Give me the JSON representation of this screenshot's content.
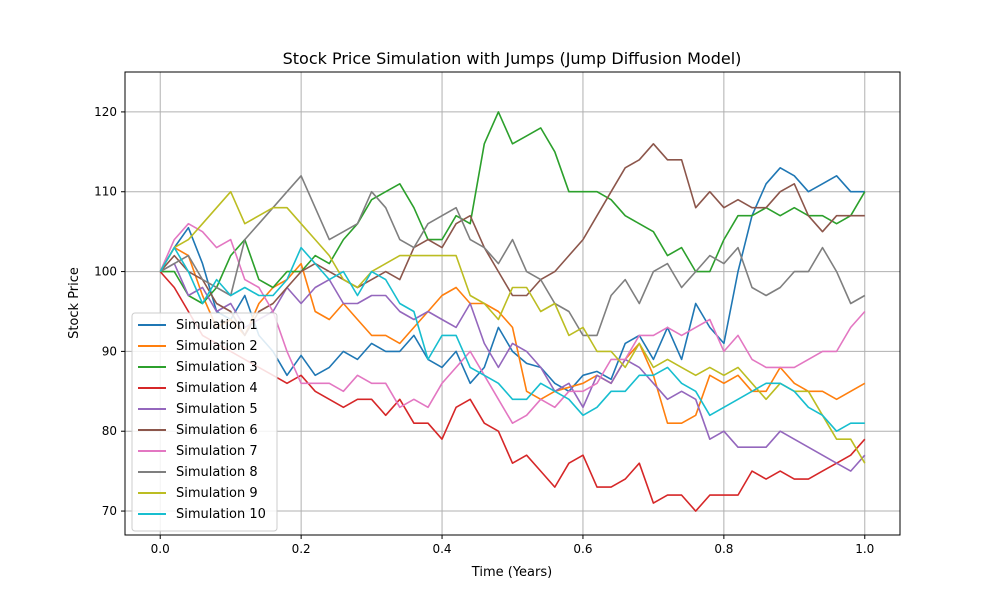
{
  "chart_data": {
    "type": "line",
    "title": "Stock Price Simulation with Jumps (Jump Diffusion Model)",
    "xlabel": "Time (Years)",
    "ylabel": "Stock Price",
    "xlim": [
      -0.05,
      1.05
    ],
    "ylim": [
      67,
      125
    ],
    "xticks": [
      0.0,
      0.2,
      0.4,
      0.6,
      0.8,
      1.0
    ],
    "xtick_labels": [
      "0.0",
      "0.2",
      "0.4",
      "0.6",
      "0.8",
      "1.0"
    ],
    "yticks": [
      70,
      80,
      90,
      100,
      110,
      120
    ],
    "ytick_labels": [
      "70",
      "80",
      "90",
      "100",
      "110",
      "120"
    ],
    "grid": true,
    "legend_position": "lower-left",
    "series": [
      {
        "name": "Simulation 1",
        "color": "#1f77b4",
        "x": [
          0.0,
          0.02,
          0.04,
          0.06,
          0.08,
          0.1,
          0.12,
          0.14,
          0.16,
          0.18,
          0.2,
          0.22,
          0.24,
          0.26,
          0.28,
          0.3,
          0.32,
          0.34,
          0.36,
          0.38,
          0.4,
          0.42,
          0.44,
          0.46,
          0.48,
          0.5,
          0.52,
          0.54,
          0.56,
          0.58,
          0.6,
          0.62,
          0.64,
          0.66,
          0.68,
          0.7,
          0.72,
          0.74,
          0.76,
          0.78,
          0.8,
          0.82,
          0.84,
          0.86,
          0.88,
          0.9,
          0.92,
          0.94,
          0.96,
          0.98,
          1.0
        ],
        "y": [
          100,
          103,
          105.5,
          101,
          95,
          94,
          97,
          92,
          90,
          87,
          89.5,
          87,
          88,
          90,
          89,
          91,
          90,
          90,
          92,
          89,
          88,
          90,
          86,
          88,
          93,
          90,
          88.5,
          88,
          86,
          85,
          87,
          87.5,
          86.5,
          91,
          92,
          89,
          93,
          89,
          96,
          93,
          91,
          100,
          107,
          111,
          113,
          112,
          110,
          111,
          112,
          110,
          110
        ]
      },
      {
        "name": "Simulation 2",
        "color": "#ff7f0e",
        "x": [
          0.0,
          0.02,
          0.04,
          0.06,
          0.08,
          0.1,
          0.12,
          0.14,
          0.16,
          0.18,
          0.2,
          0.22,
          0.24,
          0.26,
          0.28,
          0.3,
          0.32,
          0.34,
          0.36,
          0.38,
          0.4,
          0.42,
          0.44,
          0.46,
          0.48,
          0.5,
          0.52,
          0.54,
          0.56,
          0.58,
          0.6,
          0.62,
          0.64,
          0.66,
          0.68,
          0.7,
          0.72,
          0.74,
          0.76,
          0.78,
          0.8,
          0.82,
          0.84,
          0.86,
          0.88,
          0.9,
          0.92,
          0.94,
          0.96,
          0.98,
          1.0
        ],
        "y": [
          100,
          103,
          102,
          97,
          93,
          94,
          92,
          96,
          98,
          99,
          101,
          95,
          94,
          96,
          94,
          92,
          92,
          91,
          93,
          95,
          97,
          98,
          96,
          96,
          95,
          93,
          85,
          84,
          85,
          85.5,
          86,
          87,
          86,
          89,
          91,
          87,
          81,
          81,
          82,
          87,
          86,
          87,
          85,
          85,
          88,
          86,
          85,
          85,
          84,
          85,
          86
        ]
      },
      {
        "name": "Simulation 3",
        "color": "#2ca02c",
        "x": [
          0.0,
          0.02,
          0.04,
          0.06,
          0.08,
          0.1,
          0.12,
          0.14,
          0.16,
          0.18,
          0.2,
          0.22,
          0.24,
          0.26,
          0.28,
          0.3,
          0.32,
          0.34,
          0.36,
          0.38,
          0.4,
          0.42,
          0.44,
          0.46,
          0.48,
          0.5,
          0.52,
          0.54,
          0.56,
          0.58,
          0.6,
          0.62,
          0.64,
          0.66,
          0.68,
          0.7,
          0.72,
          0.74,
          0.76,
          0.78,
          0.8,
          0.82,
          0.84,
          0.86,
          0.88,
          0.9,
          0.92,
          0.94,
          0.96,
          0.98,
          1.0
        ],
        "y": [
          100,
          100,
          97,
          96,
          98,
          102,
          104,
          99,
          98,
          100,
          100,
          102,
          101,
          104,
          106,
          109,
          110,
          111,
          108,
          104,
          104,
          107,
          106,
          116,
          120,
          116,
          117,
          118,
          115,
          110,
          110,
          110,
          109,
          107,
          106,
          105,
          102,
          103,
          100,
          100,
          104,
          107,
          107,
          108,
          107,
          108,
          107,
          107,
          106,
          107,
          110
        ]
      },
      {
        "name": "Simulation 4",
        "color": "#d62728",
        "x": [
          0.0,
          0.02,
          0.04,
          0.06,
          0.08,
          0.1,
          0.12,
          0.14,
          0.16,
          0.18,
          0.2,
          0.22,
          0.24,
          0.26,
          0.28,
          0.3,
          0.32,
          0.34,
          0.36,
          0.38,
          0.4,
          0.42,
          0.44,
          0.46,
          0.48,
          0.5,
          0.52,
          0.54,
          0.56,
          0.58,
          0.6,
          0.62,
          0.64,
          0.66,
          0.68,
          0.7,
          0.72,
          0.74,
          0.76,
          0.78,
          0.8,
          0.82,
          0.84,
          0.86,
          0.88,
          0.9,
          0.92,
          0.94,
          0.96,
          0.98,
          1.0
        ],
        "y": [
          100,
          98,
          95,
          92,
          91,
          90,
          89,
          88,
          87,
          86,
          87,
          85,
          84,
          83,
          84,
          84,
          82,
          84,
          81,
          81,
          79,
          83,
          84,
          81,
          80,
          76,
          77,
          75,
          73,
          76,
          77,
          73,
          73,
          74,
          76,
          71,
          72,
          72,
          70,
          72,
          72,
          72,
          75,
          74,
          75,
          74,
          74,
          75,
          76,
          77,
          79
        ]
      },
      {
        "name": "Simulation 5",
        "color": "#9467bd",
        "x": [
          0.0,
          0.02,
          0.04,
          0.06,
          0.08,
          0.1,
          0.12,
          0.14,
          0.16,
          0.18,
          0.2,
          0.22,
          0.24,
          0.26,
          0.28,
          0.3,
          0.32,
          0.34,
          0.36,
          0.38,
          0.4,
          0.42,
          0.44,
          0.46,
          0.48,
          0.5,
          0.52,
          0.54,
          0.56,
          0.58,
          0.6,
          0.62,
          0.64,
          0.66,
          0.68,
          0.7,
          0.72,
          0.74,
          0.76,
          0.78,
          0.8,
          0.82,
          0.84,
          0.86,
          0.88,
          0.9,
          0.92,
          0.94,
          0.96,
          0.98,
          1.0
        ],
        "y": [
          100,
          101,
          97,
          98,
          95,
          96,
          93,
          94,
          95,
          98,
          96,
          98,
          99,
          96,
          96,
          97,
          97,
          95,
          94,
          95,
          94,
          93,
          96,
          91,
          88,
          91,
          90,
          88,
          85,
          86,
          83,
          87,
          86,
          89,
          88,
          86,
          84,
          85,
          84,
          79,
          80,
          78,
          78,
          78,
          80,
          79,
          78,
          77,
          76,
          75,
          77
        ]
      },
      {
        "name": "Simulation 6",
        "color": "#8c564b",
        "x": [
          0.0,
          0.02,
          0.04,
          0.06,
          0.08,
          0.1,
          0.12,
          0.14,
          0.16,
          0.18,
          0.2,
          0.22,
          0.24,
          0.26,
          0.28,
          0.3,
          0.32,
          0.34,
          0.36,
          0.38,
          0.4,
          0.42,
          0.44,
          0.46,
          0.48,
          0.5,
          0.52,
          0.54,
          0.56,
          0.58,
          0.6,
          0.62,
          0.64,
          0.66,
          0.68,
          0.7,
          0.72,
          0.74,
          0.76,
          0.78,
          0.8,
          0.82,
          0.84,
          0.86,
          0.88,
          0.9,
          0.92,
          0.94,
          0.96,
          0.98,
          1.0
        ],
        "y": [
          100,
          102,
          100,
          99,
          96,
          95,
          92,
          95,
          96,
          98,
          100,
          101,
          100,
          99,
          98,
          99,
          100,
          99,
          103,
          104,
          103,
          106,
          107,
          103,
          100,
          97,
          97,
          99,
          100,
          102,
          104,
          107,
          110,
          113,
          114,
          116,
          114,
          114,
          108,
          110,
          108,
          109,
          108,
          108,
          110,
          111,
          107,
          105,
          107,
          107,
          107
        ]
      },
      {
        "name": "Simulation 7",
        "color": "#e377c2",
        "x": [
          0.0,
          0.02,
          0.04,
          0.06,
          0.08,
          0.1,
          0.12,
          0.14,
          0.16,
          0.18,
          0.2,
          0.22,
          0.24,
          0.26,
          0.28,
          0.3,
          0.32,
          0.34,
          0.36,
          0.38,
          0.4,
          0.42,
          0.44,
          0.46,
          0.48,
          0.5,
          0.52,
          0.54,
          0.56,
          0.58,
          0.6,
          0.62,
          0.64,
          0.66,
          0.68,
          0.7,
          0.72,
          0.74,
          0.76,
          0.78,
          0.8,
          0.82,
          0.84,
          0.86,
          0.88,
          0.9,
          0.92,
          0.94,
          0.96,
          0.98,
          1.0
        ],
        "y": [
          100,
          104,
          106,
          105,
          103,
          104,
          99,
          98,
          95,
          90,
          86,
          86,
          86,
          85,
          87,
          86,
          86,
          83,
          84,
          83,
          86,
          88,
          90,
          87,
          84,
          81,
          82,
          84,
          83,
          85,
          85,
          86,
          89,
          89,
          92,
          92,
          93,
          92,
          93,
          94,
          90,
          92,
          89,
          88,
          88,
          88,
          89,
          90,
          90,
          93,
          95
        ]
      },
      {
        "name": "Simulation 8",
        "color": "#7f7f7f",
        "x": [
          0.0,
          0.02,
          0.04,
          0.06,
          0.08,
          0.1,
          0.12,
          0.14,
          0.16,
          0.18,
          0.2,
          0.22,
          0.24,
          0.26,
          0.28,
          0.3,
          0.32,
          0.34,
          0.36,
          0.38,
          0.4,
          0.42,
          0.44,
          0.46,
          0.48,
          0.5,
          0.52,
          0.54,
          0.56,
          0.58,
          0.6,
          0.62,
          0.64,
          0.66,
          0.68,
          0.7,
          0.72,
          0.74,
          0.76,
          0.78,
          0.8,
          0.82,
          0.84,
          0.86,
          0.88,
          0.9,
          0.92,
          0.94,
          0.96,
          0.98,
          1.0
        ],
        "y": [
          100,
          101,
          102,
          99,
          98,
          97,
          104,
          106,
          108,
          110,
          112,
          108,
          104,
          105,
          106,
          110,
          108,
          104,
          103,
          106,
          107,
          108,
          104,
          103,
          101,
          104,
          100,
          99,
          96,
          95,
          92,
          92,
          97,
          99,
          96,
          100,
          101,
          98,
          100,
          102,
          101,
          103,
          98,
          97,
          98,
          100,
          100,
          103,
          100,
          96,
          97
        ]
      },
      {
        "name": "Simulation 9",
        "color": "#bcbd22",
        "x": [
          0.0,
          0.02,
          0.04,
          0.06,
          0.08,
          0.1,
          0.12,
          0.14,
          0.16,
          0.18,
          0.2,
          0.22,
          0.24,
          0.26,
          0.28,
          0.3,
          0.32,
          0.34,
          0.36,
          0.38,
          0.4,
          0.42,
          0.44,
          0.46,
          0.48,
          0.5,
          0.52,
          0.54,
          0.56,
          0.58,
          0.6,
          0.62,
          0.64,
          0.66,
          0.68,
          0.7,
          0.72,
          0.74,
          0.76,
          0.78,
          0.8,
          0.82,
          0.84,
          0.86,
          0.88,
          0.9,
          0.92,
          0.94,
          0.96,
          0.98,
          1.0
        ],
        "y": [
          100,
          103,
          104,
          106,
          108,
          110,
          106,
          107,
          108,
          108,
          106,
          104,
          102,
          99,
          98,
          100,
          101,
          102,
          102,
          102,
          102,
          102,
          97,
          96,
          94,
          98,
          98,
          95,
          96,
          92,
          93,
          90,
          90,
          88,
          91,
          88,
          89,
          88,
          87,
          88,
          87,
          88,
          86,
          84,
          86,
          85,
          85,
          82,
          79,
          79,
          76
        ]
      },
      {
        "name": "Simulation 10",
        "color": "#17becf",
        "x": [
          0.0,
          0.02,
          0.04,
          0.06,
          0.08,
          0.1,
          0.12,
          0.14,
          0.16,
          0.18,
          0.2,
          0.22,
          0.24,
          0.26,
          0.28,
          0.3,
          0.32,
          0.34,
          0.36,
          0.38,
          0.4,
          0.42,
          0.44,
          0.46,
          0.48,
          0.5,
          0.52,
          0.54,
          0.56,
          0.58,
          0.6,
          0.62,
          0.64,
          0.66,
          0.68,
          0.7,
          0.72,
          0.74,
          0.76,
          0.78,
          0.8,
          0.82,
          0.84,
          0.86,
          0.88,
          0.9,
          0.92,
          0.94,
          0.96,
          0.98,
          1.0
        ],
        "y": [
          100,
          103,
          100,
          96,
          99,
          97,
          98,
          97,
          97,
          99,
          103,
          101,
          99,
          100,
          97,
          100,
          99,
          96,
          95,
          89,
          92,
          92,
          88,
          87,
          86,
          84,
          84,
          86,
          85,
          84,
          82,
          83,
          85,
          85,
          87,
          87,
          88,
          86,
          85,
          82,
          83,
          84,
          85,
          86,
          86,
          85,
          83,
          82,
          80,
          81,
          81
        ]
      }
    ]
  }
}
